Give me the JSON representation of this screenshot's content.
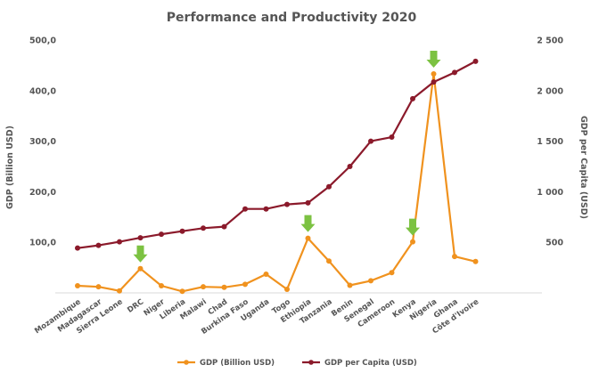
{
  "chart_data": {
    "type": "line",
    "title": "Performance and Productivity 2020",
    "categories": [
      "Mozambique",
      "Madagascar",
      "Sierra Leone",
      "DRC",
      "Niger",
      "Liberia",
      "Malawi",
      "Chad",
      "Burkina Faso",
      "Uganda",
      "Togo",
      "Ethiopia",
      "Tanzania",
      "Benin",
      "Senegal",
      "Cameroon",
      "Kenya",
      "Nigeria",
      "Ghana",
      "Côte d'Ivoire"
    ],
    "ylabel": "GDP (Billion USD)",
    "y2label": "GDP per Capita (USD)",
    "ylim": [
      0,
      500
    ],
    "y2lim": [
      0,
      2500
    ],
    "yticks": [
      "",
      "100,0",
      "200,0",
      "300,0",
      "400,0",
      "500,0"
    ],
    "y2ticks": [
      "",
      "500",
      "1 000",
      "1 500",
      "2 000",
      "2 500"
    ],
    "series": [
      {
        "name": "GDP (Billion USD)",
        "axis": "left",
        "color": "#f0921e",
        "values": [
          14,
          12,
          4,
          48,
          14,
          3,
          12,
          11,
          17,
          37,
          7,
          108,
          63,
          15,
          24,
          40,
          101,
          433,
          72,
          62
        ]
      },
      {
        "name": "GDP per Capita (USD)",
        "axis": "right",
        "color": "#8b1a2b",
        "values": [
          443,
          470,
          505,
          545,
          580,
          610,
          640,
          655,
          830,
          830,
          875,
          890,
          1050,
          1250,
          1500,
          1540,
          1920,
          2085,
          2180,
          2290
        ]
      }
    ],
    "highlight_markers": {
      "color": "#7cc242",
      "categories": [
        "DRC",
        "Ethiopia",
        "Kenya",
        "Nigeria"
      ]
    },
    "grid": false,
    "legend": "bottom"
  }
}
